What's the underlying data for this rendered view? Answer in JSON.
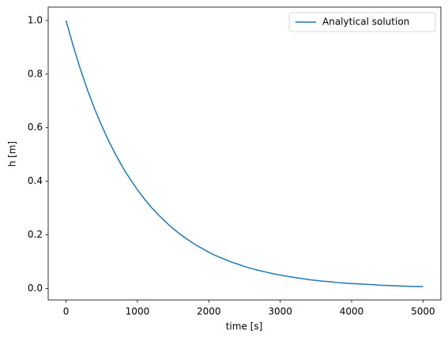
{
  "chart_data": {
    "type": "line",
    "xlabel": "time [s]",
    "ylabel": "h [m]",
    "x": [
      0,
      100,
      200,
      300,
      400,
      500,
      600,
      700,
      800,
      900,
      1000,
      1100,
      1200,
      1300,
      1400,
      1500,
      1600,
      1700,
      1800,
      1900,
      2000,
      2100,
      2200,
      2300,
      2400,
      2500,
      2600,
      2700,
      2800,
      2900,
      3000,
      3100,
      3200,
      3300,
      3400,
      3500,
      3600,
      3700,
      3800,
      3900,
      4000,
      4100,
      4200,
      4300,
      4400,
      4500,
      4600,
      4700,
      4800,
      4900,
      5000
    ],
    "series": [
      {
        "name": "Analytical solution",
        "color": "#1f77b4",
        "values": [
          1.0,
          0.905,
          0.819,
          0.741,
          0.67,
          0.607,
          0.549,
          0.497,
          0.449,
          0.407,
          0.368,
          0.333,
          0.301,
          0.273,
          0.247,
          0.223,
          0.202,
          0.183,
          0.165,
          0.15,
          0.135,
          0.122,
          0.111,
          0.1,
          0.091,
          0.082,
          0.074,
          0.067,
          0.061,
          0.055,
          0.05,
          0.045,
          0.041,
          0.037,
          0.033,
          0.03,
          0.027,
          0.025,
          0.022,
          0.02,
          0.018,
          0.017,
          0.015,
          0.014,
          0.012,
          0.011,
          0.01,
          0.009,
          0.008,
          0.007,
          0.007
        ]
      }
    ],
    "xlim": [
      -250,
      5250
    ],
    "xticks": [
      0,
      1000,
      2000,
      3000,
      4000,
      5000
    ],
    "ylim": [
      -0.043,
      1.05
    ],
    "yticks": [
      {
        "value": 0,
        "label": "0.0"
      },
      0.2,
      0.4,
      0.6,
      0.8,
      {
        "value": 1,
        "label": "1.0"
      }
    ],
    "grid": false,
    "legend": "upper right"
  }
}
